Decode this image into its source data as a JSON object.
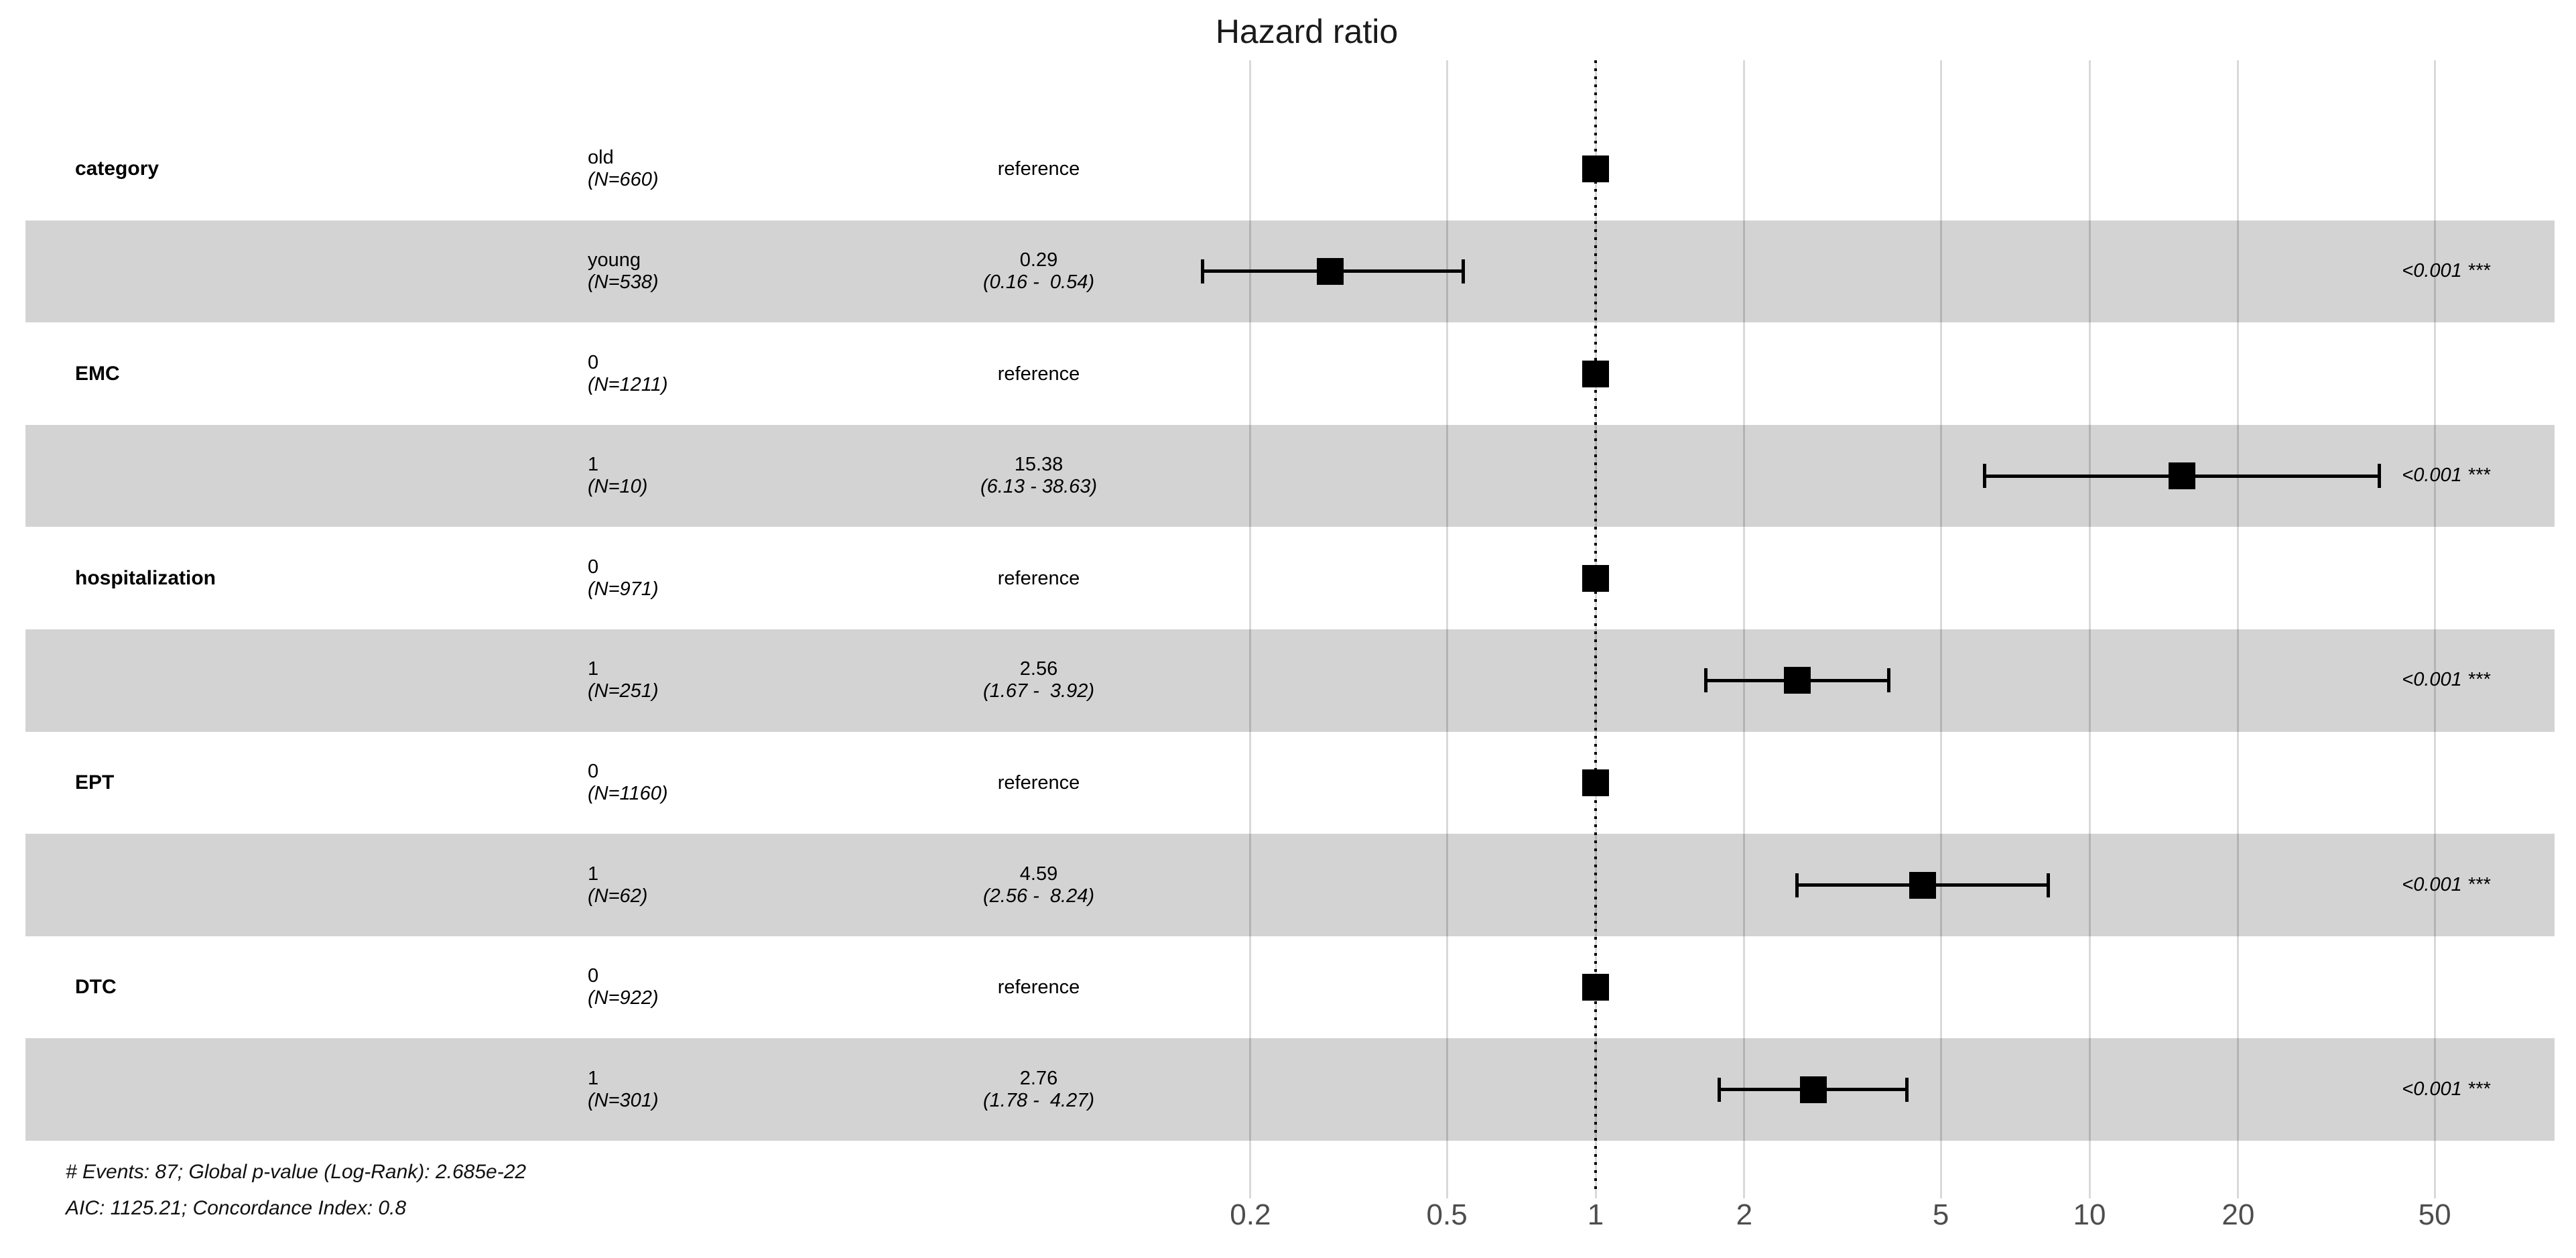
{
  "chart_data": {
    "type": "forest",
    "title": "Hazard ratio",
    "x_scale": "log10",
    "x_axis_ticks": [
      {
        "value": 0.2,
        "label": "0.2"
      },
      {
        "value": 0.5,
        "label": "0.5"
      },
      {
        "value": 1,
        "label": "1"
      },
      {
        "value": 2,
        "label": "2"
      },
      {
        "value": 5,
        "label": "5"
      },
      {
        "value": 10,
        "label": "10"
      },
      {
        "value": 20,
        "label": "20"
      },
      {
        "value": 50,
        "label": "50"
      }
    ],
    "reference_line": 1,
    "legend_position": "none",
    "grid": true,
    "rows": [
      {
        "variable": "category",
        "level": "old",
        "n_label": "(N=660)",
        "estimate_label": "reference",
        "ci_label": "",
        "hr": 1,
        "ci_low": null,
        "ci_high": null,
        "p_label": "",
        "shaded": false
      },
      {
        "variable": "",
        "level": "young",
        "n_label": "(N=538)",
        "estimate_label": "0.29",
        "ci_label": "(0.16 -  0.54)",
        "hr": 0.29,
        "ci_low": 0.16,
        "ci_high": 0.54,
        "p_label": "<0.001 ***",
        "shaded": true
      },
      {
        "variable": "EMC",
        "level": "0",
        "n_label": "(N=1211)",
        "estimate_label": "reference",
        "ci_label": "",
        "hr": 1,
        "ci_low": null,
        "ci_high": null,
        "p_label": "",
        "shaded": false
      },
      {
        "variable": "",
        "level": "1",
        "n_label": "(N=10)",
        "estimate_label": "15.38",
        "ci_label": "(6.13 - 38.63)",
        "hr": 15.38,
        "ci_low": 6.13,
        "ci_high": 38.63,
        "p_label": "<0.001 ***",
        "shaded": true
      },
      {
        "variable": "hospitalization",
        "level": "0",
        "n_label": "(N=971)",
        "estimate_label": "reference",
        "ci_label": "",
        "hr": 1,
        "ci_low": null,
        "ci_high": null,
        "p_label": "",
        "shaded": false
      },
      {
        "variable": "",
        "level": "1",
        "n_label": "(N=251)",
        "estimate_label": "2.56",
        "ci_label": "(1.67 -  3.92)",
        "hr": 2.56,
        "ci_low": 1.67,
        "ci_high": 3.92,
        "p_label": "<0.001 ***",
        "shaded": true
      },
      {
        "variable": "EPT",
        "level": "0",
        "n_label": "(N=1160)",
        "estimate_label": "reference",
        "ci_label": "",
        "hr": 1,
        "ci_low": null,
        "ci_high": null,
        "p_label": "",
        "shaded": false
      },
      {
        "variable": "",
        "level": "1",
        "n_label": "(N=62)",
        "estimate_label": "4.59",
        "ci_label": "(2.56 -  8.24)",
        "hr": 4.59,
        "ci_low": 2.56,
        "ci_high": 8.24,
        "p_label": "<0.001 ***",
        "shaded": true
      },
      {
        "variable": "DTC",
        "level": "0",
        "n_label": "(N=922)",
        "estimate_label": "reference",
        "ci_label": "",
        "hr": 1,
        "ci_low": null,
        "ci_high": null,
        "p_label": "",
        "shaded": false
      },
      {
        "variable": "",
        "level": "1",
        "n_label": "(N=301)",
        "estimate_label": "2.76",
        "ci_label": "(1.78 -  4.27)",
        "hr": 2.76,
        "ci_low": 1.78,
        "ci_high": 4.27,
        "p_label": "<0.001 ***",
        "shaded": true
      }
    ],
    "footnotes": [
      "# Events: 87; Global p-value (Log-Rank): 2.685e-22",
      "AIC: 1125.21; Concordance Index: 0.8"
    ],
    "colors": {
      "band": "#d3d3d3",
      "marker": "#000000",
      "axis_text": "#4d4d4d",
      "grid": "rgba(0,0,0,0.15)"
    }
  }
}
